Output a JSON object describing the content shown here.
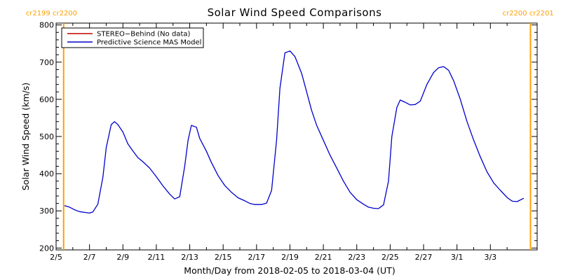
{
  "chart_data": {
    "type": "line",
    "title": "Solar Wind Speed Comparisons",
    "xlabel": "Month/Day from 2018-02-05 to 2018-03-04 (UT)",
    "ylabel": "Solar Wind Speed (km/s)",
    "ylim": [
      195,
      805
    ],
    "xlim": [
      0,
      28.8
    ],
    "x_start_date": "2018-02-05",
    "x_ticks": [
      {
        "x": 0,
        "label": "2/5"
      },
      {
        "x": 2,
        "label": "2/7"
      },
      {
        "x": 4,
        "label": "2/9"
      },
      {
        "x": 6,
        "label": "2/11"
      },
      {
        "x": 8,
        "label": "2/13"
      },
      {
        "x": 10,
        "label": "2/15"
      },
      {
        "x": 12,
        "label": "2/17"
      },
      {
        "x": 14,
        "label": "2/19"
      },
      {
        "x": 16,
        "label": "2/21"
      },
      {
        "x": 18,
        "label": "2/23"
      },
      {
        "x": 20,
        "label": "2/25"
      },
      {
        "x": 22,
        "label": "2/27"
      },
      {
        "x": 24,
        "label": "3/1"
      },
      {
        "x": 26,
        "label": "3/3"
      }
    ],
    "y_ticks": [
      200,
      300,
      400,
      500,
      600,
      700,
      800
    ],
    "legend": {
      "placement": "top-left",
      "entries": [
        {
          "label": "STEREO−Behind (No data)",
          "color": "#c00000"
        },
        {
          "label": "Predictive Science MAS Model",
          "color": "#0000cc"
        }
      ]
    },
    "carrington_markers": [
      {
        "x": 0.45,
        "label": "cr2199 cr2200",
        "align": "left"
      },
      {
        "x": 28.4,
        "label": "cr2200 cr2201",
        "align": "right"
      }
    ],
    "marker_color": "#ffa000",
    "series": [
      {
        "name": "Predictive Science MAS Model",
        "color": "#0000cc",
        "points": [
          [
            0.5,
            314
          ],
          [
            0.8,
            310
          ],
          [
            1.1,
            303
          ],
          [
            1.4,
            298
          ],
          [
            1.7,
            296
          ],
          [
            2.0,
            294
          ],
          [
            2.2,
            297
          ],
          [
            2.5,
            318
          ],
          [
            2.8,
            390
          ],
          [
            3.0,
            470
          ],
          [
            3.3,
            532
          ],
          [
            3.5,
            540
          ],
          [
            3.7,
            532
          ],
          [
            4.0,
            512
          ],
          [
            4.3,
            480
          ],
          [
            4.6,
            461
          ],
          [
            4.9,
            443
          ],
          [
            5.2,
            432
          ],
          [
            5.6,
            415
          ],
          [
            6.0,
            392
          ],
          [
            6.4,
            367
          ],
          [
            6.8,
            345
          ],
          [
            7.1,
            332
          ],
          [
            7.4,
            338
          ],
          [
            7.7,
            420
          ],
          [
            7.9,
            490
          ],
          [
            8.1,
            530
          ],
          [
            8.4,
            525
          ],
          [
            8.6,
            495
          ],
          [
            9.0,
            460
          ],
          [
            9.3,
            430
          ],
          [
            9.7,
            395
          ],
          [
            10.1,
            368
          ],
          [
            10.5,
            350
          ],
          [
            10.9,
            335
          ],
          [
            11.3,
            327
          ],
          [
            11.6,
            320
          ],
          [
            11.9,
            317
          ],
          [
            12.3,
            317
          ],
          [
            12.6,
            321
          ],
          [
            12.9,
            355
          ],
          [
            13.2,
            490
          ],
          [
            13.4,
            630
          ],
          [
            13.7,
            725
          ],
          [
            14.0,
            730
          ],
          [
            14.3,
            715
          ],
          [
            14.7,
            670
          ],
          [
            15.0,
            620
          ],
          [
            15.3,
            570
          ],
          [
            15.6,
            530
          ],
          [
            16.0,
            490
          ],
          [
            16.4,
            450
          ],
          [
            16.8,
            415
          ],
          [
            17.2,
            380
          ],
          [
            17.6,
            350
          ],
          [
            18.0,
            330
          ],
          [
            18.4,
            318
          ],
          [
            18.7,
            310
          ],
          [
            19.0,
            307
          ],
          [
            19.3,
            306
          ],
          [
            19.6,
            316
          ],
          [
            19.9,
            380
          ],
          [
            20.1,
            500
          ],
          [
            20.4,
            578
          ],
          [
            20.6,
            598
          ],
          [
            20.9,
            592
          ],
          [
            21.2,
            585
          ],
          [
            21.5,
            586
          ],
          [
            21.8,
            595
          ],
          [
            22.2,
            640
          ],
          [
            22.6,
            672
          ],
          [
            22.9,
            685
          ],
          [
            23.2,
            688
          ],
          [
            23.5,
            678
          ],
          [
            23.8,
            650
          ],
          [
            24.2,
            600
          ],
          [
            24.6,
            540
          ],
          [
            25.0,
            490
          ],
          [
            25.4,
            445
          ],
          [
            25.8,
            405
          ],
          [
            26.2,
            375
          ],
          [
            26.6,
            355
          ],
          [
            27.0,
            336
          ],
          [
            27.3,
            326
          ],
          [
            27.6,
            325
          ],
          [
            28.0,
            334
          ]
        ]
      }
    ]
  }
}
